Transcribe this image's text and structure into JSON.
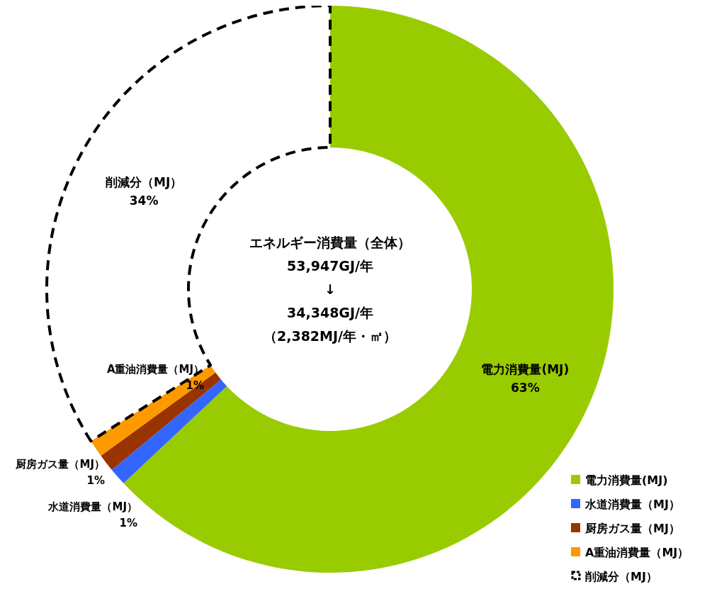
{
  "chart_data": {
    "type": "donut",
    "categories": [
      "電力消費量(MJ)",
      "水道消費量（MJ）",
      "厨房ガス量（MJ）",
      "A重油消費量（MJ）",
      "削減分（MJ）"
    ],
    "values": [
      63,
      1,
      1,
      1,
      34
    ],
    "colors": [
      "#99cc00",
      "#3366ff",
      "#993300",
      "#ff9900",
      "#ffffff"
    ],
    "value_labels": [
      "63%",
      "1%",
      "1%",
      "1%",
      "34%"
    ],
    "line_style": "dashed",
    "legend": "bottom right",
    "annotations": [
      "エネルギー消費量（全体）",
      "53,947GJ/年",
      "↓",
      "34,348GJ/年",
      "（2,382MJ/年・㎡）"
    ]
  }
}
